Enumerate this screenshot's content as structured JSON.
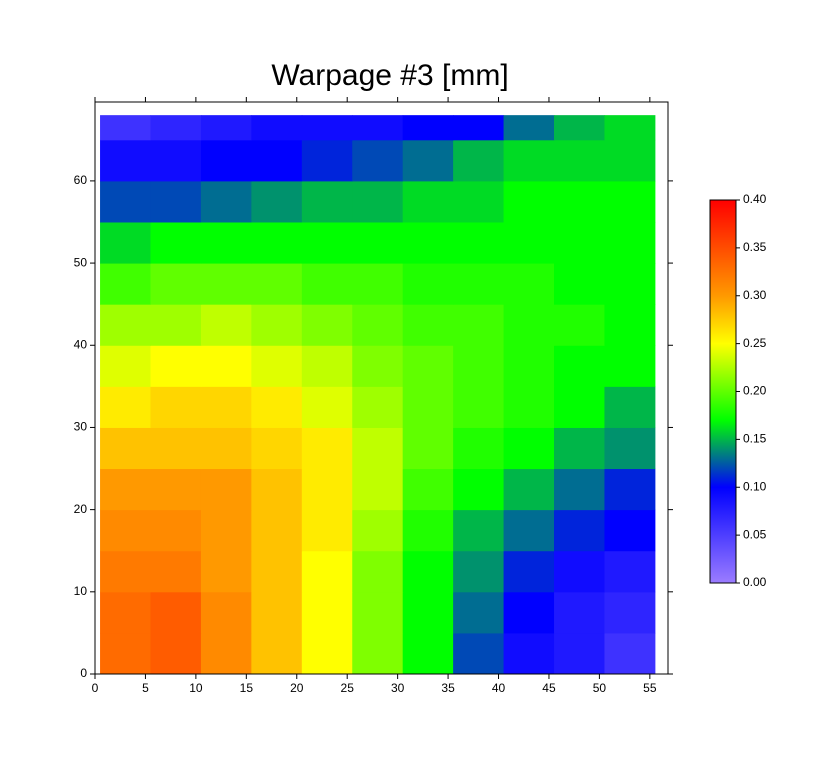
{
  "chart_data": {
    "type": "heatmap",
    "title": "Warpage #3 [mm]",
    "xbins": [
      0.5,
      5.5,
      10.5,
      15.5,
      20.5,
      25.5,
      30.5,
      35.5,
      40.5,
      45.5,
      50.5,
      55.5
    ],
    "ybins": [
      0,
      5,
      10,
      15,
      20,
      25,
      30,
      35,
      40,
      45,
      50,
      55,
      60,
      65,
      68
    ],
    "z": [
      [
        0.33,
        0.34,
        0.31,
        0.28,
        0.25,
        0.21,
        0.17,
        0.12,
        0.09,
        0.08,
        0.06
      ],
      [
        0.33,
        0.34,
        0.31,
        0.28,
        0.25,
        0.21,
        0.17,
        0.13,
        0.1,
        0.08,
        0.07
      ],
      [
        0.32,
        0.32,
        0.3,
        0.28,
        0.25,
        0.21,
        0.17,
        0.14,
        0.11,
        0.09,
        0.08
      ],
      [
        0.31,
        0.31,
        0.3,
        0.28,
        0.26,
        0.22,
        0.18,
        0.15,
        0.13,
        0.11,
        0.1
      ],
      [
        0.3,
        0.3,
        0.3,
        0.28,
        0.26,
        0.23,
        0.19,
        0.17,
        0.15,
        0.13,
        0.11
      ],
      [
        0.28,
        0.28,
        0.28,
        0.27,
        0.26,
        0.23,
        0.2,
        0.18,
        0.17,
        0.15,
        0.14
      ],
      [
        0.26,
        0.27,
        0.27,
        0.26,
        0.24,
        0.22,
        0.2,
        0.19,
        0.18,
        0.17,
        0.15
      ],
      [
        0.24,
        0.25,
        0.25,
        0.24,
        0.23,
        0.21,
        0.2,
        0.19,
        0.18,
        0.17,
        0.17
      ],
      [
        0.22,
        0.22,
        0.23,
        0.22,
        0.21,
        0.2,
        0.19,
        0.19,
        0.18,
        0.18,
        0.17
      ],
      [
        0.19,
        0.2,
        0.2,
        0.2,
        0.19,
        0.19,
        0.18,
        0.18,
        0.18,
        0.17,
        0.17
      ],
      [
        0.16,
        0.17,
        0.17,
        0.17,
        0.17,
        0.17,
        0.17,
        0.17,
        0.17,
        0.17,
        0.17
      ],
      [
        0.12,
        0.12,
        0.13,
        0.14,
        0.15,
        0.15,
        0.16,
        0.16,
        0.17,
        0.17,
        0.17
      ],
      [
        0.09,
        0.09,
        0.1,
        0.1,
        0.11,
        0.12,
        0.13,
        0.15,
        0.16,
        0.16,
        0.16
      ],
      [
        0.06,
        0.07,
        0.08,
        0.09,
        0.09,
        0.09,
        0.1,
        0.1,
        0.13,
        0.15,
        0.16
      ]
    ],
    "xlim": [
      0,
      56.8
    ],
    "ylim": [
      0,
      69.6
    ],
    "xticks": [
      0,
      5,
      10,
      15,
      20,
      25,
      30,
      35,
      40,
      45,
      50,
      55
    ],
    "yticks": [
      0,
      10,
      20,
      30,
      40,
      50,
      60
    ],
    "zlim": [
      0,
      0.4
    ],
    "zticks": [
      {
        "value": 0,
        "label": "0.00"
      },
      {
        "value": 0.05,
        "label": "0.05"
      },
      {
        "value": 0.1,
        "label": "0.10"
      },
      {
        "value": 0.15,
        "label": "0.15"
      },
      {
        "value": 0.2,
        "label": "0.20"
      },
      {
        "value": 0.25,
        "label": "0.25"
      },
      {
        "value": 0.3,
        "label": "0.30"
      },
      {
        "value": 0.35,
        "label": "0.35"
      },
      {
        "value": 0.4,
        "label": "0.40"
      }
    ],
    "colorscale": [
      [
        0,
        "#9b7cff"
      ],
      [
        0.1,
        "#0000ff"
      ],
      [
        0.17,
        "#00ff00"
      ],
      [
        0.25,
        "#ffff00"
      ],
      [
        0.3,
        "#ff9900"
      ],
      [
        0.4,
        "#ff0000"
      ]
    ]
  }
}
